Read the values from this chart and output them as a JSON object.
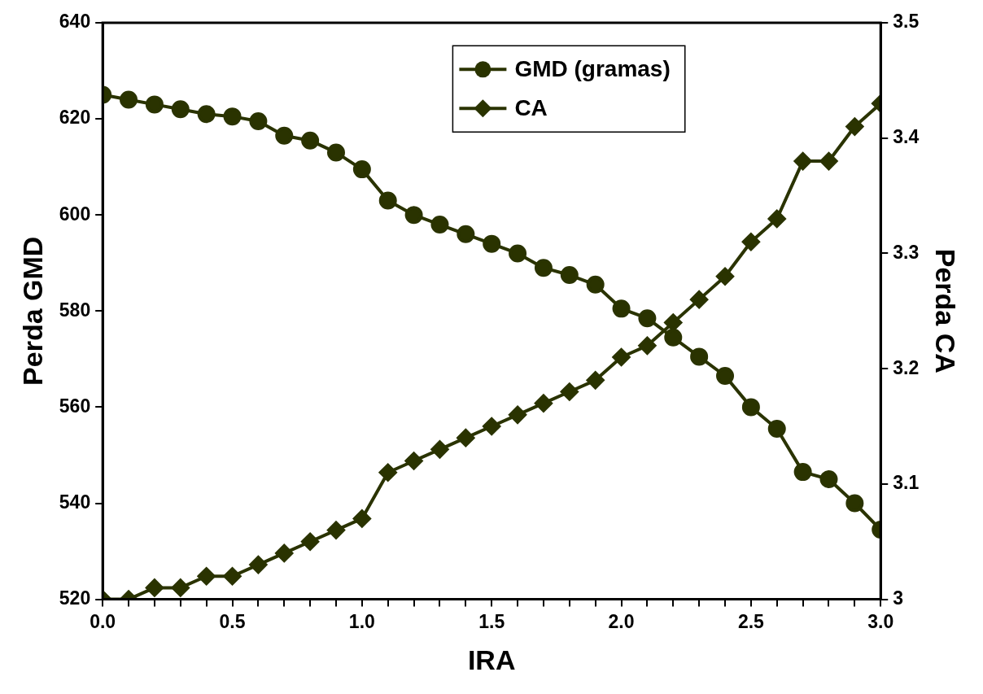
{
  "chart_data": {
    "type": "line",
    "xlabel": "IRA",
    "ylabel": "Perda GMD",
    "y2label": "Perda CA",
    "x": [
      0.0,
      0.1,
      0.2,
      0.3,
      0.4,
      0.5,
      0.6,
      0.7,
      0.8,
      0.9,
      1.0,
      1.1,
      1.2,
      1.3,
      1.4,
      1.5,
      1.6,
      1.7,
      1.8,
      1.9,
      2.0,
      2.1,
      2.2,
      2.3,
      2.4,
      2.5,
      2.6,
      2.7,
      2.8,
      2.9,
      3.0
    ],
    "series": [
      {
        "name": "GMD (gramas)",
        "color": "#2a3300",
        "marker": "circle",
        "values": [
          625,
          624,
          623,
          622,
          621,
          620.5,
          619.5,
          616.5,
          615.5,
          613,
          609.5,
          603,
          600,
          598,
          596,
          594,
          592,
          589,
          587.5,
          585.5,
          580.5,
          578.5,
          574.5,
          570.5,
          566.5,
          560,
          555.5,
          546.5,
          545,
          540,
          534.5
        ]
      },
      {
        "name": "CA",
        "color": "#2a3300",
        "marker": "diamond",
        "axis": "y2",
        "values": [
          3.0,
          3.0,
          3.01,
          3.01,
          3.02,
          3.02,
          3.03,
          3.04,
          3.05,
          3.06,
          3.07,
          3.11,
          3.12,
          3.13,
          3.14,
          3.15,
          3.16,
          3.17,
          3.18,
          3.19,
          3.21,
          3.22,
          3.24,
          3.26,
          3.28,
          3.31,
          3.33,
          3.38,
          3.38,
          3.41,
          3.43
        ]
      }
    ],
    "xlim": [
      0,
      3
    ],
    "xticks": [
      {
        "value": 0,
        "label": "0.0"
      },
      {
        "value": 0.1,
        "label": null
      },
      {
        "value": 0.2,
        "label": null
      },
      {
        "value": 0.3,
        "label": null
      },
      {
        "value": 0.4,
        "label": null
      },
      {
        "value": 0.5,
        "label": "0.5"
      },
      {
        "value": 0.6,
        "label": null
      },
      {
        "value": 0.7,
        "label": null
      },
      {
        "value": 0.8,
        "label": null
      },
      {
        "value": 0.9,
        "label": null
      },
      {
        "value": 1,
        "label": "1.0"
      },
      {
        "value": 1.1,
        "label": null
      },
      {
        "value": 1.2,
        "label": null
      },
      {
        "value": 1.3,
        "label": null
      },
      {
        "value": 1.4,
        "label": null
      },
      {
        "value": 1.5,
        "label": "1.5"
      },
      {
        "value": 1.6,
        "label": null
      },
      {
        "value": 1.7,
        "label": null
      },
      {
        "value": 1.8,
        "label": null
      },
      {
        "value": 1.9,
        "label": null
      },
      {
        "value": 2,
        "label": "2.0"
      },
      {
        "value": 2.1,
        "label": null
      },
      {
        "value": 2.2,
        "label": null
      },
      {
        "value": 2.3,
        "label": null
      },
      {
        "value": 2.4,
        "label": null
      },
      {
        "value": 2.5,
        "label": "2.5"
      },
      {
        "value": 2.6,
        "label": null
      },
      {
        "value": 2.7,
        "label": null
      },
      {
        "value": 2.8,
        "label": null
      },
      {
        "value": 2.9,
        "label": null
      },
      {
        "value": 3,
        "label": "3.0"
      }
    ],
    "ylim": [
      520,
      640
    ],
    "yticks": [
      520,
      540,
      560,
      580,
      600,
      620,
      640
    ],
    "y2lim": [
      3,
      3.5
    ],
    "y2ticks": [
      3,
      3.1,
      3.2,
      3.3,
      3.4,
      3.5
    ],
    "grid": false,
    "legend": "top",
    "line_style": "solid"
  }
}
